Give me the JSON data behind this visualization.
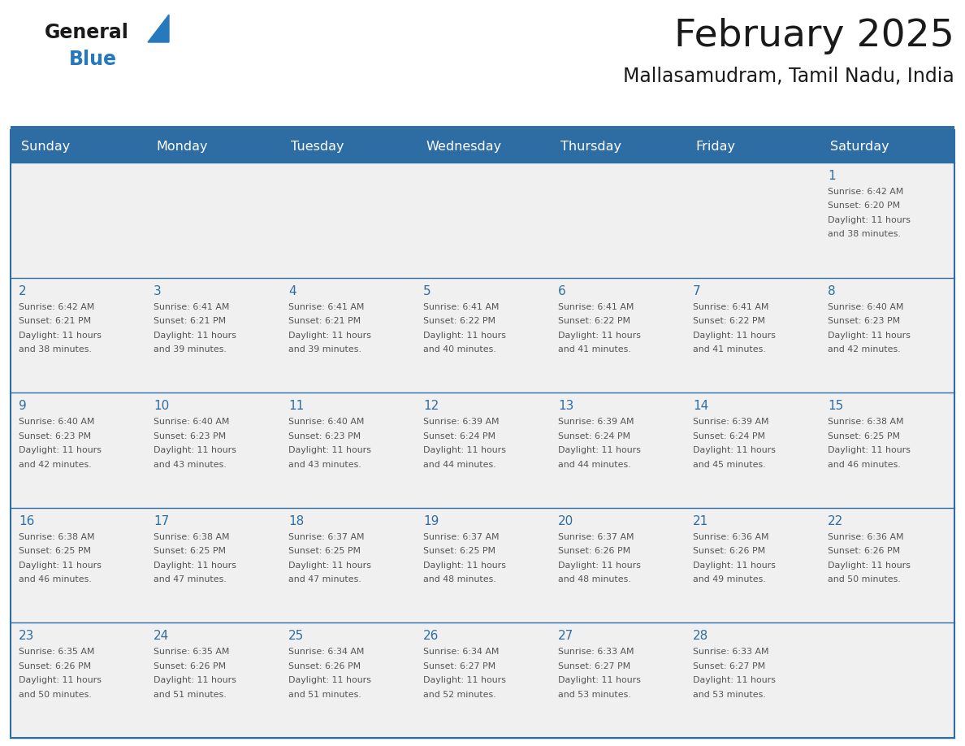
{
  "title": "February 2025",
  "subtitle": "Mallasamudram, Tamil Nadu, India",
  "days_of_week": [
    "Sunday",
    "Monday",
    "Tuesday",
    "Wednesday",
    "Thursday",
    "Friday",
    "Saturday"
  ],
  "header_bg": "#2E6DA4",
  "header_text": "#FFFFFF",
  "cell_bg": "#F0F0F0",
  "border_color": "#2E6DA4",
  "day_num_color": "#2E6DA4",
  "info_text_color": "#555555",
  "title_color": "#1A1A1A",
  "logo_general_color": "#1A1A1A",
  "logo_blue_color": "#2779BD",
  "calendar": [
    [
      null,
      null,
      null,
      null,
      null,
      null,
      {
        "day": 1,
        "sunrise": "6:42 AM",
        "sunset": "6:20 PM",
        "daylight": "11 hours",
        "daylight2": "and 38 minutes."
      }
    ],
    [
      {
        "day": 2,
        "sunrise": "6:42 AM",
        "sunset": "6:21 PM",
        "daylight": "11 hours",
        "daylight2": "and 38 minutes."
      },
      {
        "day": 3,
        "sunrise": "6:41 AM",
        "sunset": "6:21 PM",
        "daylight": "11 hours",
        "daylight2": "and 39 minutes."
      },
      {
        "day": 4,
        "sunrise": "6:41 AM",
        "sunset": "6:21 PM",
        "daylight": "11 hours",
        "daylight2": "and 39 minutes."
      },
      {
        "day": 5,
        "sunrise": "6:41 AM",
        "sunset": "6:22 PM",
        "daylight": "11 hours",
        "daylight2": "and 40 minutes."
      },
      {
        "day": 6,
        "sunrise": "6:41 AM",
        "sunset": "6:22 PM",
        "daylight": "11 hours",
        "daylight2": "and 41 minutes."
      },
      {
        "day": 7,
        "sunrise": "6:41 AM",
        "sunset": "6:22 PM",
        "daylight": "11 hours",
        "daylight2": "and 41 minutes."
      },
      {
        "day": 8,
        "sunrise": "6:40 AM",
        "sunset": "6:23 PM",
        "daylight": "11 hours",
        "daylight2": "and 42 minutes."
      }
    ],
    [
      {
        "day": 9,
        "sunrise": "6:40 AM",
        "sunset": "6:23 PM",
        "daylight": "11 hours",
        "daylight2": "and 42 minutes."
      },
      {
        "day": 10,
        "sunrise": "6:40 AM",
        "sunset": "6:23 PM",
        "daylight": "11 hours",
        "daylight2": "and 43 minutes."
      },
      {
        "day": 11,
        "sunrise": "6:40 AM",
        "sunset": "6:23 PM",
        "daylight": "11 hours",
        "daylight2": "and 43 minutes."
      },
      {
        "day": 12,
        "sunrise": "6:39 AM",
        "sunset": "6:24 PM",
        "daylight": "11 hours",
        "daylight2": "and 44 minutes."
      },
      {
        "day": 13,
        "sunrise": "6:39 AM",
        "sunset": "6:24 PM",
        "daylight": "11 hours",
        "daylight2": "and 44 minutes."
      },
      {
        "day": 14,
        "sunrise": "6:39 AM",
        "sunset": "6:24 PM",
        "daylight": "11 hours",
        "daylight2": "and 45 minutes."
      },
      {
        "day": 15,
        "sunrise": "6:38 AM",
        "sunset": "6:25 PM",
        "daylight": "11 hours",
        "daylight2": "and 46 minutes."
      }
    ],
    [
      {
        "day": 16,
        "sunrise": "6:38 AM",
        "sunset": "6:25 PM",
        "daylight": "11 hours",
        "daylight2": "and 46 minutes."
      },
      {
        "day": 17,
        "sunrise": "6:38 AM",
        "sunset": "6:25 PM",
        "daylight": "11 hours",
        "daylight2": "and 47 minutes."
      },
      {
        "day": 18,
        "sunrise": "6:37 AM",
        "sunset": "6:25 PM",
        "daylight": "11 hours",
        "daylight2": "and 47 minutes."
      },
      {
        "day": 19,
        "sunrise": "6:37 AM",
        "sunset": "6:25 PM",
        "daylight": "11 hours",
        "daylight2": "and 48 minutes."
      },
      {
        "day": 20,
        "sunrise": "6:37 AM",
        "sunset": "6:26 PM",
        "daylight": "11 hours",
        "daylight2": "and 48 minutes."
      },
      {
        "day": 21,
        "sunrise": "6:36 AM",
        "sunset": "6:26 PM",
        "daylight": "11 hours",
        "daylight2": "and 49 minutes."
      },
      {
        "day": 22,
        "sunrise": "6:36 AM",
        "sunset": "6:26 PM",
        "daylight": "11 hours",
        "daylight2": "and 50 minutes."
      }
    ],
    [
      {
        "day": 23,
        "sunrise": "6:35 AM",
        "sunset": "6:26 PM",
        "daylight": "11 hours",
        "daylight2": "and 50 minutes."
      },
      {
        "day": 24,
        "sunrise": "6:35 AM",
        "sunset": "6:26 PM",
        "daylight": "11 hours",
        "daylight2": "and 51 minutes."
      },
      {
        "day": 25,
        "sunrise": "6:34 AM",
        "sunset": "6:26 PM",
        "daylight": "11 hours",
        "daylight2": "and 51 minutes."
      },
      {
        "day": 26,
        "sunrise": "6:34 AM",
        "sunset": "6:27 PM",
        "daylight": "11 hours",
        "daylight2": "and 52 minutes."
      },
      {
        "day": 27,
        "sunrise": "6:33 AM",
        "sunset": "6:27 PM",
        "daylight": "11 hours",
        "daylight2": "and 53 minutes."
      },
      {
        "day": 28,
        "sunrise": "6:33 AM",
        "sunset": "6:27 PM",
        "daylight": "11 hours",
        "daylight2": "and 53 minutes."
      },
      null
    ]
  ]
}
